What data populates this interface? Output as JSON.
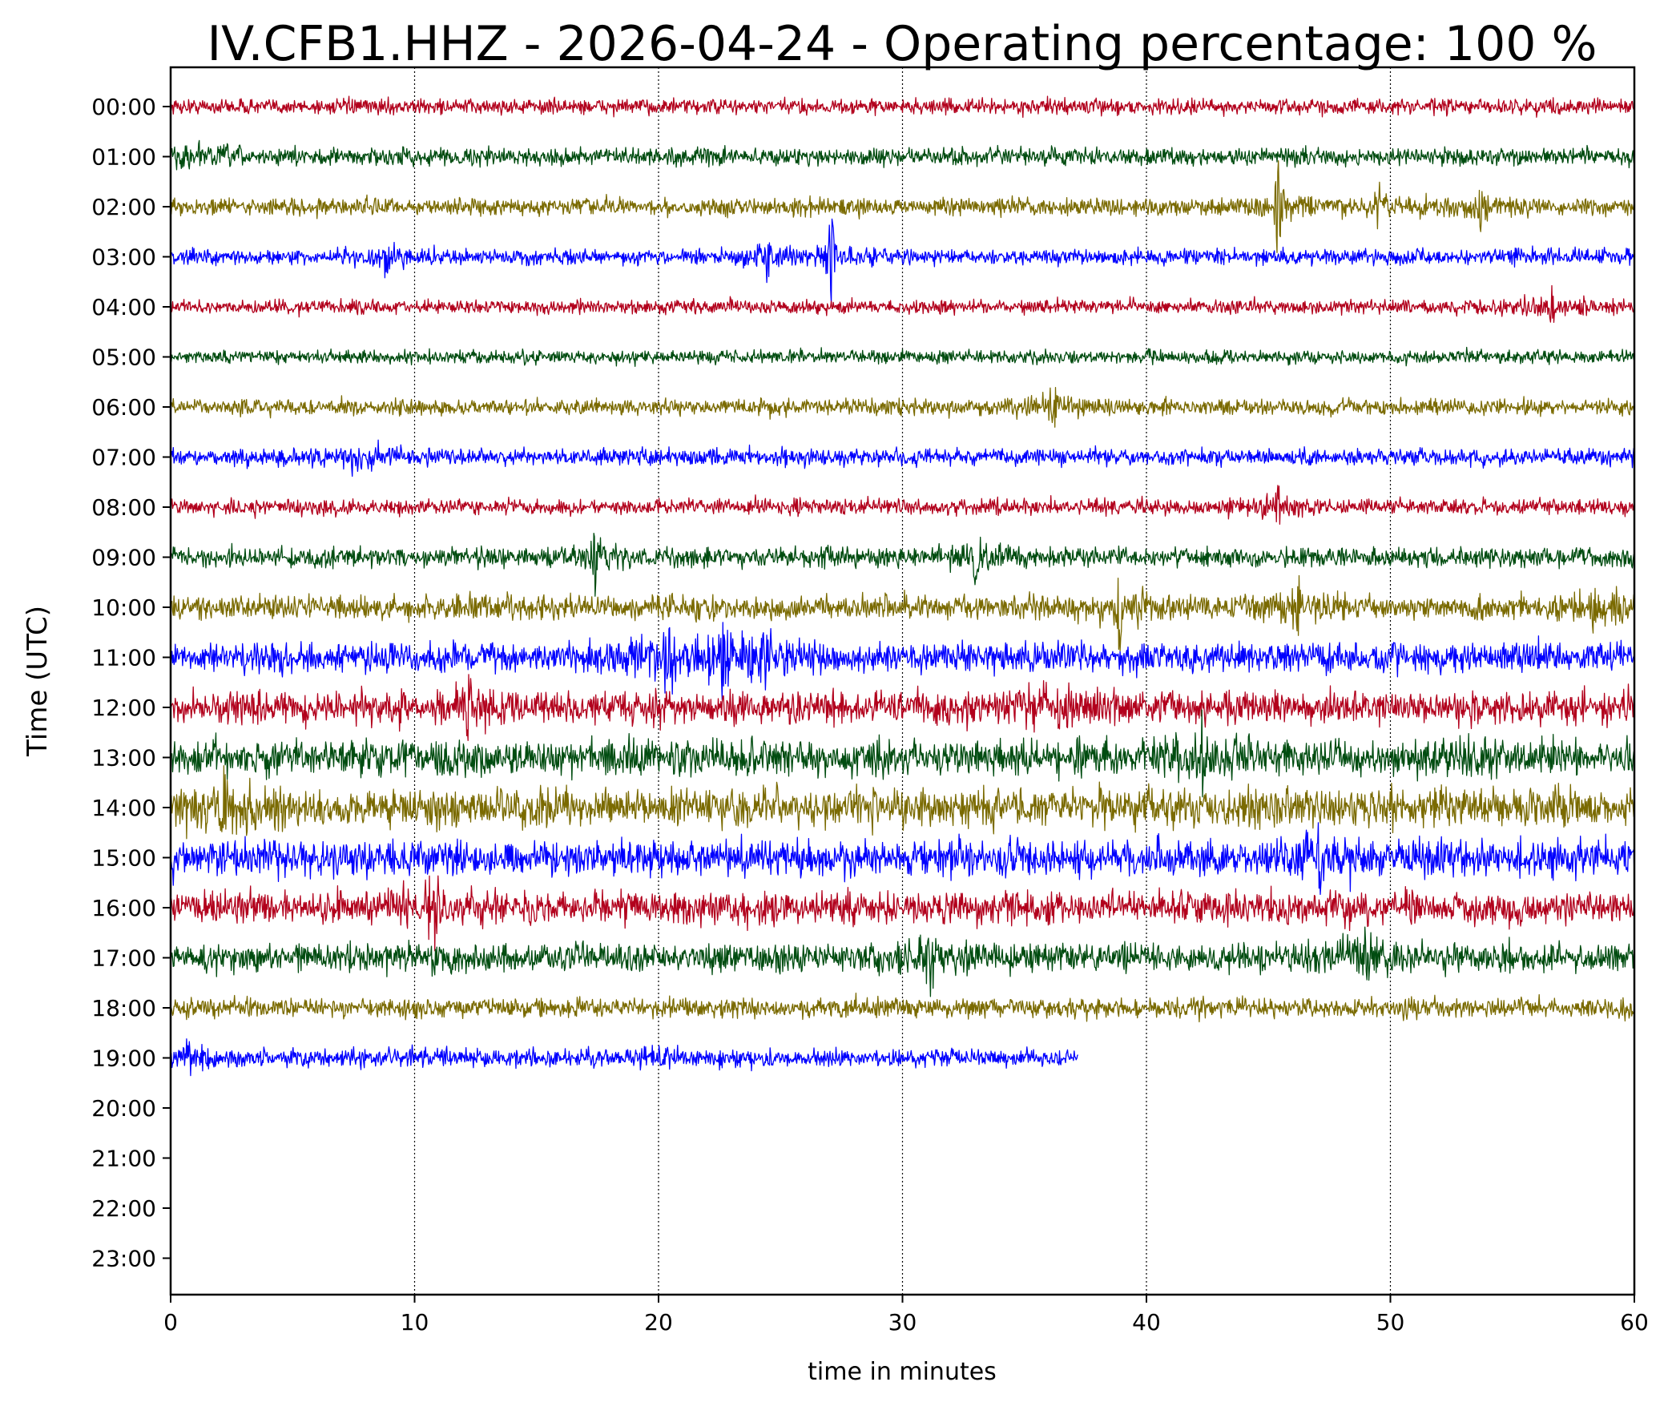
{
  "chart_data": {
    "type": "line",
    "title": "IV.CFB1.HHZ - 2026-04-24 - Operating percentage: 100 %",
    "xlabel": "time in minutes",
    "ylabel": "Time (UTC)",
    "xlim": [
      0,
      60
    ],
    "x_ticks": [
      0,
      10,
      20,
      30,
      40,
      50,
      60
    ],
    "y_ticks": [
      "00:00",
      "01:00",
      "02:00",
      "03:00",
      "04:00",
      "05:00",
      "06:00",
      "07:00",
      "08:00",
      "09:00",
      "10:00",
      "11:00",
      "12:00",
      "13:00",
      "14:00",
      "15:00",
      "16:00",
      "17:00",
      "18:00",
      "19:00",
      "20:00",
      "21:00",
      "22:00",
      "23:00"
    ],
    "grid": "vertical dotted at major x ticks",
    "colors": [
      "#b2001c",
      "#004c10",
      "#7a6a00",
      "#0000ff"
    ],
    "series": [
      {
        "hour": "00:00",
        "color": "#b2001c",
        "end_min": 60,
        "amplitude": 0.16,
        "spikes": []
      },
      {
        "hour": "01:00",
        "color": "#004c10",
        "end_min": 60,
        "amplitude": 0.18,
        "spikes": [
          [
            1.2,
            0.35
          ]
        ]
      },
      {
        "hour": "02:00",
        "color": "#7a6a00",
        "end_min": 60,
        "amplitude": 0.18,
        "spikes": [
          [
            45.4,
            1.1
          ],
          [
            49.5,
            0.4
          ],
          [
            53.7,
            0.65
          ]
        ]
      },
      {
        "hour": "03:00",
        "color": "#0000ff",
        "end_min": 60,
        "amplitude": 0.16,
        "spikes": [
          [
            8.8,
            0.3
          ],
          [
            27.1,
            1.15
          ],
          [
            24.5,
            0.45
          ]
        ]
      },
      {
        "hour": "04:00",
        "color": "#b2001c",
        "end_min": 60,
        "amplitude": 0.15,
        "spikes": [
          [
            56.6,
            0.35
          ]
        ]
      },
      {
        "hour": "05:00",
        "color": "#004c10",
        "end_min": 60,
        "amplitude": 0.14,
        "spikes": []
      },
      {
        "hour": "06:00",
        "color": "#7a6a00",
        "end_min": 60,
        "amplitude": 0.17,
        "spikes": [
          [
            36.2,
            0.35
          ]
        ]
      },
      {
        "hour": "07:00",
        "color": "#0000ff",
        "end_min": 60,
        "amplitude": 0.18,
        "spikes": [
          [
            7.5,
            0.3
          ]
        ]
      },
      {
        "hour": "08:00",
        "color": "#b2001c",
        "end_min": 60,
        "amplitude": 0.17,
        "spikes": [
          [
            45.4,
            0.45
          ]
        ]
      },
      {
        "hour": "09:00",
        "color": "#004c10",
        "end_min": 60,
        "amplitude": 0.2,
        "spikes": [
          [
            17.4,
            0.65
          ],
          [
            33,
            0.5
          ]
        ]
      },
      {
        "hour": "10:00",
        "color": "#7a6a00",
        "end_min": 60,
        "amplitude": 0.25,
        "spikes": [
          [
            38.9,
            0.8
          ],
          [
            46.2,
            0.75
          ],
          [
            58.4,
            0.6
          ]
        ]
      },
      {
        "hour": "11:00",
        "color": "#0000ff",
        "end_min": 60,
        "amplitude": 0.32,
        "spikes": [
          [
            20.4,
            1.05
          ],
          [
            22.6,
            0.95
          ],
          [
            24.2,
            0.5
          ]
        ]
      },
      {
        "hour": "12:00",
        "color": "#b2001c",
        "end_min": 60,
        "amplitude": 0.34,
        "spikes": [
          [
            12.2,
            0.85
          ],
          [
            35.8,
            0.35
          ]
        ]
      },
      {
        "hour": "13:00",
        "color": "#004c10",
        "end_min": 60,
        "amplitude": 0.38,
        "spikes": [
          [
            42.3,
            0.55
          ]
        ]
      },
      {
        "hour": "14:00",
        "color": "#7a6a00",
        "end_min": 60,
        "amplitude": 0.42,
        "spikes": [
          [
            2.3,
            0.55
          ]
        ]
      },
      {
        "hour": "15:00",
        "color": "#0000ff",
        "end_min": 60,
        "amplitude": 0.38,
        "spikes": [
          [
            47.1,
            0.45
          ]
        ]
      },
      {
        "hour": "16:00",
        "color": "#b2001c",
        "end_min": 60,
        "amplitude": 0.34,
        "spikes": [
          [
            10.8,
            0.4
          ]
        ]
      },
      {
        "hour": "17:00",
        "color": "#004c10",
        "end_min": 60,
        "amplitude": 0.3,
        "spikes": [
          [
            31.2,
            0.4
          ],
          [
            49,
            0.4
          ]
        ]
      },
      {
        "hour": "18:00",
        "color": "#7a6a00",
        "end_min": 60,
        "amplitude": 0.2,
        "spikes": []
      },
      {
        "hour": "19:00",
        "color": "#0000ff",
        "end_min": 37.2,
        "amplitude": 0.2,
        "spikes": [
          [
            1.1,
            0.3
          ]
        ]
      }
    ]
  }
}
